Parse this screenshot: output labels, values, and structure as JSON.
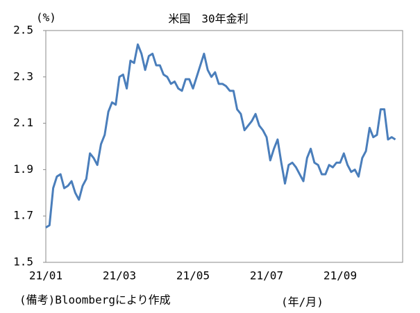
{
  "chart_data": {
    "type": "line",
    "title": "米国　30年金利",
    "y_unit": "(%)",
    "x_unit": "(年/月)",
    "note": "(備考)Bloombergにより作成",
    "categories": [
      "21/01",
      null,
      null,
      null,
      null,
      null,
      null,
      null,
      null,
      null,
      null,
      null,
      null,
      null,
      null,
      null,
      null,
      null,
      null,
      null,
      "21/03",
      null,
      null,
      null,
      null,
      null,
      null,
      null,
      null,
      null,
      null,
      null,
      null,
      null,
      null,
      null,
      null,
      null,
      null,
      null,
      "21/05",
      null,
      null,
      null,
      null,
      null,
      null,
      null,
      null,
      null,
      null,
      null,
      null,
      null,
      null,
      null,
      null,
      null,
      null,
      null,
      "21/07",
      null,
      null,
      null,
      null,
      null,
      null,
      null,
      null,
      null,
      null,
      null,
      null,
      null,
      null,
      null,
      null,
      null,
      null,
      null,
      "21/09",
      null,
      null,
      null,
      null,
      null,
      null,
      null,
      null,
      null,
      null,
      null,
      null,
      null,
      null,
      null
    ],
    "values": [
      1.65,
      1.66,
      1.82,
      1.87,
      1.88,
      1.82,
      1.83,
      1.85,
      1.8,
      1.77,
      1.83,
      1.86,
      1.97,
      1.95,
      1.92,
      2.01,
      2.05,
      2.15,
      2.19,
      2.18,
      2.3,
      2.31,
      2.25,
      2.37,
      2.36,
      2.44,
      2.4,
      2.33,
      2.39,
      2.4,
      2.35,
      2.35,
      2.31,
      2.3,
      2.27,
      2.28,
      2.25,
      2.24,
      2.29,
      2.29,
      2.25,
      2.3,
      2.35,
      2.4,
      2.33,
      2.3,
      2.32,
      2.27,
      2.27,
      2.26,
      2.24,
      2.24,
      2.16,
      2.14,
      2.07,
      2.09,
      2.11,
      2.14,
      2.09,
      2.07,
      2.04,
      1.94,
      1.99,
      2.03,
      1.93,
      1.84,
      1.92,
      1.93,
      1.91,
      1.88,
      1.85,
      1.95,
      1.99,
      1.93,
      1.92,
      1.88,
      1.88,
      1.92,
      1.91,
      1.93,
      1.93,
      1.97,
      1.92,
      1.89,
      1.9,
      1.87,
      1.95,
      1.98,
      2.08,
      2.04,
      2.05,
      2.16,
      2.16,
      2.03,
      2.04,
      2.03
    ],
    "color": "#4a7ebb",
    "ylim": [
      1.5,
      2.5
    ],
    "yticks": [
      1.5,
      1.7,
      1.9,
      2.1,
      2.3,
      2.5
    ]
  }
}
